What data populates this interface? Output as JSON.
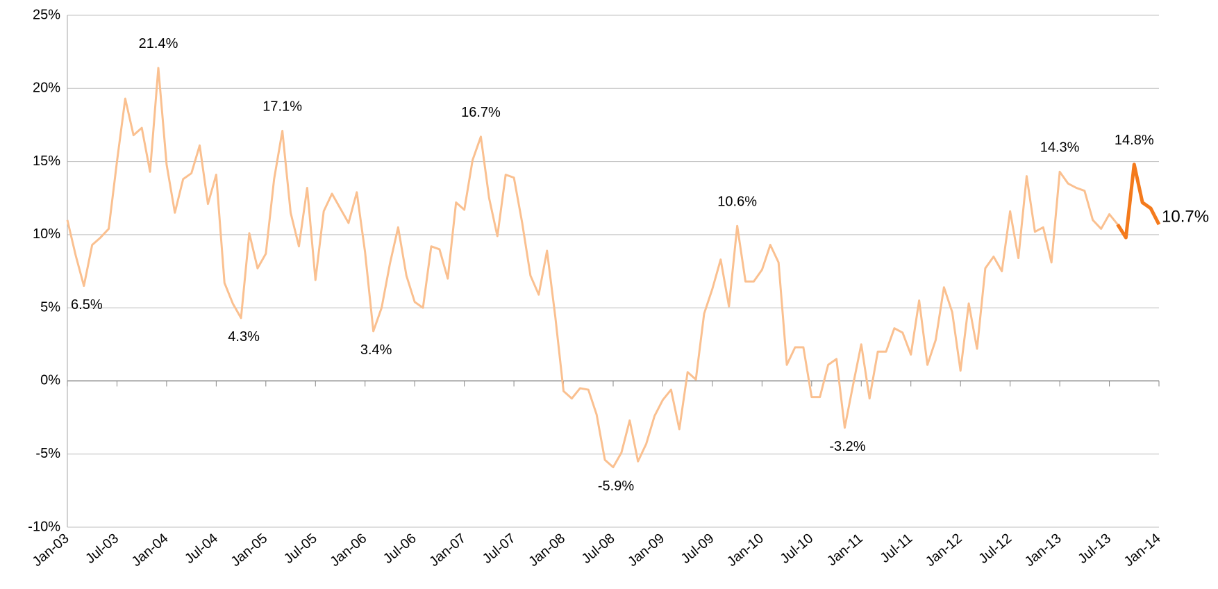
{
  "chart_data": {
    "type": "line",
    "categories": [
      "Jan-03",
      null,
      null,
      null,
      null,
      null,
      "Jul-03",
      null,
      null,
      null,
      null,
      null,
      "Jan-04",
      null,
      null,
      null,
      null,
      null,
      "Jul-04",
      null,
      null,
      null,
      null,
      null,
      "Jan-05",
      null,
      null,
      null,
      null,
      null,
      "Jul-05",
      null,
      null,
      null,
      null,
      null,
      "Jan-06",
      null,
      null,
      null,
      null,
      null,
      "Jul-06",
      null,
      null,
      null,
      null,
      null,
      "Jan-07",
      null,
      null,
      null,
      null,
      null,
      "Jul-07",
      null,
      null,
      null,
      null,
      null,
      "Jan-08",
      null,
      null,
      null,
      null,
      null,
      "Jul-08",
      null,
      null,
      null,
      null,
      null,
      "Jan-09",
      null,
      null,
      null,
      null,
      null,
      "Jul-09",
      null,
      null,
      null,
      null,
      null,
      "Jan-10",
      null,
      null,
      null,
      null,
      null,
      "Jul-10",
      null,
      null,
      null,
      null,
      null,
      "Jan-11",
      null,
      null,
      null,
      null,
      null,
      "Jul-11",
      null,
      null,
      null,
      null,
      null,
      "Jan-12",
      null,
      null,
      null,
      null,
      null,
      "Jul-12",
      null,
      null,
      null,
      null,
      null,
      "Jan-13",
      null,
      null,
      null,
      null,
      null,
      "Jul-13",
      null,
      null,
      null,
      null,
      null,
      "Jan-14"
    ],
    "series": [
      {
        "color": "#fac090",
        "width": 3,
        "values": [
          11,
          8.6,
          6.5,
          9.3,
          9.8,
          10.4,
          15,
          19.3,
          16.8,
          17.3,
          14.3,
          21.4,
          14.8,
          11.5,
          13.8,
          14.2,
          16.1,
          12.1,
          14.1,
          6.7,
          5.3,
          4.3,
          10.1,
          7.7,
          8.7,
          13.8,
          17.1,
          11.5,
          9.2,
          13.2,
          6.9,
          11.6,
          12.8,
          11.8,
          10.8,
          12.9,
          8.8,
          3.4,
          5,
          8,
          10.5,
          7.2,
          5.4,
          5,
          9.2,
          9,
          7,
          12.2,
          11.7,
          15.1,
          16.7,
          12.5,
          9.9,
          14.1,
          13.9,
          10.8,
          7.2,
          5.9,
          8.9,
          4.4,
          -0.7,
          -1.2,
          -0.5,
          -0.6,
          -2.3,
          -5.4,
          -5.9,
          -4.9,
          -2.7,
          -5.5,
          -4.3,
          -2.4,
          -1.3,
          -0.6,
          -3.3,
          0.6,
          0.1,
          4.6,
          6.3,
          8.3,
          5.1,
          10.6,
          6.8,
          6.8,
          7.6,
          9.3,
          8.1,
          1.1,
          2.3,
          2.3,
          -1.1,
          -1.1,
          1.1,
          1.5,
          -3.2,
          -0.3,
          2.5,
          -1.2,
          2,
          2,
          3.6,
          3.3,
          1.8,
          5.5,
          1.1,
          2.8,
          6.4,
          4.7,
          0.7,
          5.3,
          2.2,
          7.7,
          8.5,
          7.5,
          11.6,
          8.4,
          14,
          10.2,
          10.5,
          8.1,
          14.3,
          13.5,
          13.2,
          13,
          11,
          10.4,
          11.4,
          10.7,
          null,
          null,
          null,
          null,
          null
        ],
        "value_labels": [
          null,
          null,
          "6.5%",
          null,
          null,
          null,
          null,
          null,
          null,
          null,
          null,
          "21.4%",
          null,
          null,
          null,
          null,
          null,
          null,
          null,
          null,
          null,
          "4.3%",
          null,
          null,
          null,
          null,
          "17.1%",
          null,
          null,
          null,
          null,
          null,
          null,
          null,
          null,
          null,
          null,
          "3.4%",
          null,
          null,
          null,
          null,
          null,
          null,
          null,
          null,
          null,
          null,
          null,
          null,
          "16.7%",
          null,
          null,
          null,
          null,
          null,
          null,
          null,
          null,
          null,
          null,
          null,
          null,
          null,
          null,
          null,
          "-5.9%",
          null,
          null,
          null,
          null,
          null,
          null,
          null,
          null,
          null,
          null,
          null,
          null,
          null,
          null,
          "10.6%",
          null,
          null,
          null,
          null,
          null,
          null,
          null,
          null,
          null,
          null,
          null,
          null,
          "-3.2%",
          null,
          null,
          null,
          null,
          null,
          null,
          null,
          null,
          null,
          null,
          null,
          null,
          null,
          null,
          null,
          null,
          null,
          null,
          null,
          null,
          null,
          null,
          null,
          null,
          null,
          "14.3%",
          null,
          null,
          null,
          null,
          null,
          null,
          null,
          null,
          null,
          null,
          null,
          null
        ]
      },
      {
        "color": "#f47a1c",
        "width": 5,
        "values": [
          null,
          null,
          null,
          null,
          null,
          null,
          null,
          null,
          null,
          null,
          null,
          null,
          null,
          null,
          null,
          null,
          null,
          null,
          null,
          null,
          null,
          null,
          null,
          null,
          null,
          null,
          null,
          null,
          null,
          null,
          null,
          null,
          null,
          null,
          null,
          null,
          null,
          null,
          null,
          null,
          null,
          null,
          null,
          null,
          null,
          null,
          null,
          null,
          null,
          null,
          null,
          null,
          null,
          null,
          null,
          null,
          null,
          null,
          null,
          null,
          null,
          null,
          null,
          null,
          null,
          null,
          null,
          null,
          null,
          null,
          null,
          null,
          null,
          null,
          null,
          null,
          null,
          null,
          null,
          null,
          null,
          null,
          null,
          null,
          null,
          null,
          null,
          null,
          null,
          null,
          null,
          null,
          null,
          null,
          null,
          null,
          null,
          null,
          null,
          null,
          null,
          null,
          null,
          null,
          null,
          null,
          null,
          null,
          null,
          null,
          null,
          null,
          null,
          null,
          null,
          null,
          null,
          null,
          null,
          null,
          null,
          null,
          null,
          null,
          null,
          null,
          null,
          10.7,
          9.8,
          14.8,
          12.2,
          11.8,
          10.7
        ],
        "value_labels": [
          null,
          null,
          null,
          null,
          null,
          null,
          null,
          null,
          null,
          null,
          null,
          null,
          null,
          null,
          null,
          null,
          null,
          null,
          null,
          null,
          null,
          null,
          null,
          null,
          null,
          null,
          null,
          null,
          null,
          null,
          null,
          null,
          null,
          null,
          null,
          null,
          null,
          null,
          null,
          null,
          null,
          null,
          null,
          null,
          null,
          null,
          null,
          null,
          null,
          null,
          null,
          null,
          null,
          null,
          null,
          null,
          null,
          null,
          null,
          null,
          null,
          null,
          null,
          null,
          null,
          null,
          null,
          null,
          null,
          null,
          null,
          null,
          null,
          null,
          null,
          null,
          null,
          null,
          null,
          null,
          null,
          null,
          null,
          null,
          null,
          null,
          null,
          null,
          null,
          null,
          null,
          null,
          null,
          null,
          null,
          null,
          null,
          null,
          null,
          null,
          null,
          null,
          null,
          null,
          null,
          null,
          null,
          null,
          null,
          null,
          null,
          null,
          null,
          null,
          null,
          null,
          null,
          null,
          null,
          null,
          null,
          null,
          null,
          null,
          null,
          null,
          null,
          null,
          null,
          "14.8%",
          null,
          null,
          "10.7%"
        ]
      }
    ],
    "ylim": [
      -10,
      25
    ],
    "yticks": [
      {
        "value": -10,
        "label": "-10%"
      },
      {
        "value": -5,
        "label": "-5%"
      },
      {
        "value": 0,
        "label": "0%"
      },
      {
        "value": 5,
        "label": "5%"
      },
      {
        "value": 10,
        "label": "10%"
      },
      {
        "value": 15,
        "label": "15%"
      },
      {
        "value": 20,
        "label": "20%"
      },
      {
        "value": 25,
        "label": "25%"
      }
    ],
    "grid": true
  }
}
